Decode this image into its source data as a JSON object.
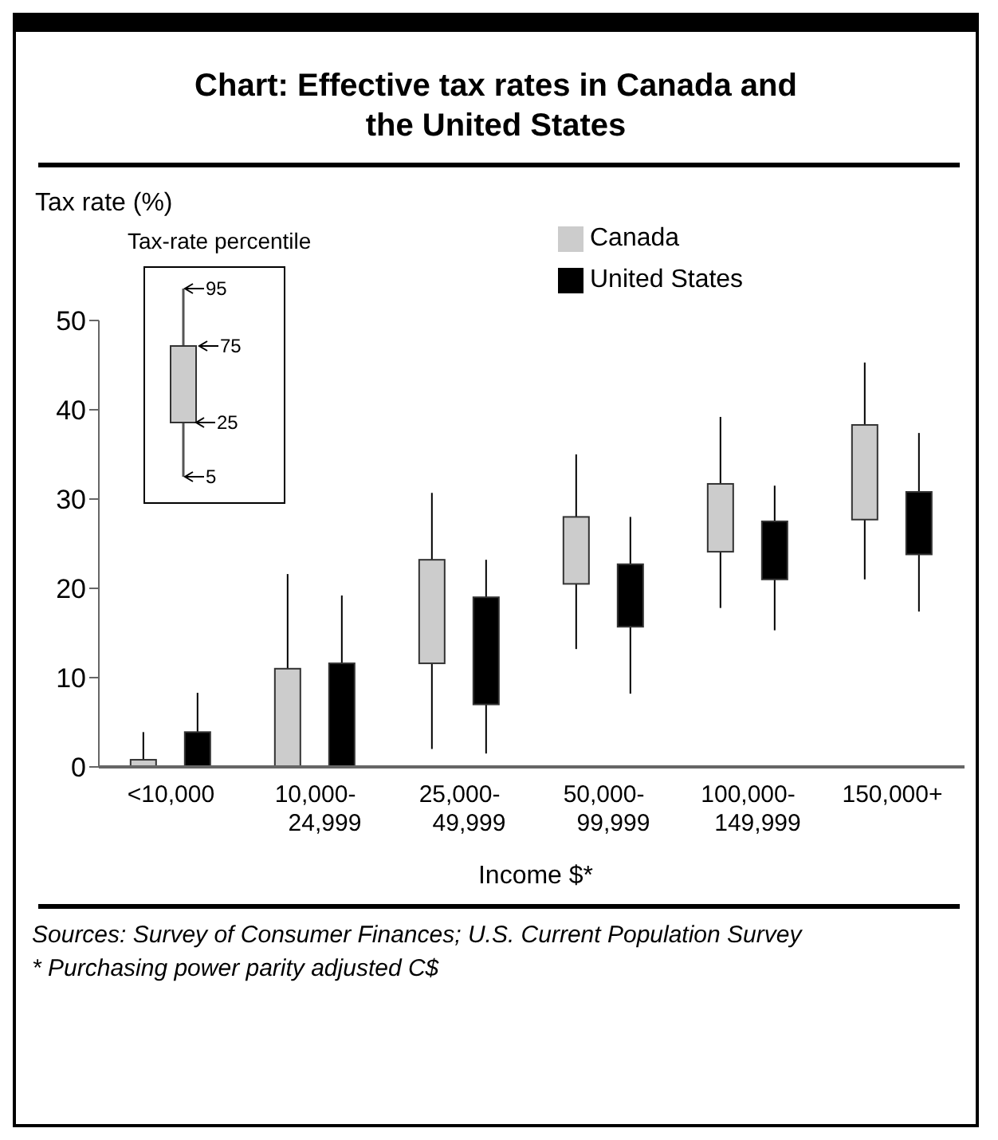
{
  "chart_data": {
    "type": "box",
    "title": "Chart: Effective tax rates in Canada and the United States",
    "xlabel": "Income $*",
    "ylabel": "Tax rate (%)",
    "categories": [
      "<10,000",
      "10,000-24,999",
      "25,000-49,999",
      "50,000-99,999",
      "100,000-149,999",
      "150,000+"
    ],
    "series": [
      {
        "name": "Canada",
        "color": "#cccccc",
        "boxes": [
          {
            "low": 0,
            "q1": 0,
            "q3": 0.8,
            "high": 3.9
          },
          {
            "low": 0,
            "q1": 0,
            "q3": 11.0,
            "high": 21.6
          },
          {
            "low": 2.0,
            "q1": 11.6,
            "q3": 23.2,
            "high": 30.7
          },
          {
            "low": 13.2,
            "q1": 20.5,
            "q3": 28.0,
            "high": 35.0
          },
          {
            "low": 17.8,
            "q1": 24.1,
            "q3": 31.7,
            "high": 39.2
          },
          {
            "low": 21.0,
            "q1": 27.7,
            "q3": 38.3,
            "high": 45.3
          }
        ]
      },
      {
        "name": "United States",
        "color": "#000000",
        "boxes": [
          {
            "low": 0,
            "q1": 0,
            "q3": 3.9,
            "high": 8.3
          },
          {
            "low": 0,
            "q1": 0,
            "q3": 11.6,
            "high": 19.2
          },
          {
            "low": 1.5,
            "q1": 7.0,
            "q3": 19.0,
            "high": 23.2
          },
          {
            "low": 8.2,
            "q1": 15.7,
            "q3": 22.7,
            "high": 28.0
          },
          {
            "low": 15.3,
            "q1": 21.0,
            "q3": 27.5,
            "high": 31.5
          },
          {
            "low": 17.4,
            "q1": 23.8,
            "q3": 30.8,
            "high": 37.4
          }
        ]
      }
    ],
    "ylim": [
      0,
      50
    ],
    "yticks": [
      0,
      10,
      20,
      30,
      40,
      50
    ],
    "grid": false,
    "legend": "top right",
    "annotations": [
      "Tax-rate percentile",
      "95",
      "75",
      "25",
      "5",
      "Sources:  Survey of Consumer Finances; U.S. Current Population Survey",
      "*  Purchasing power parity adjusted C$"
    ]
  }
}
